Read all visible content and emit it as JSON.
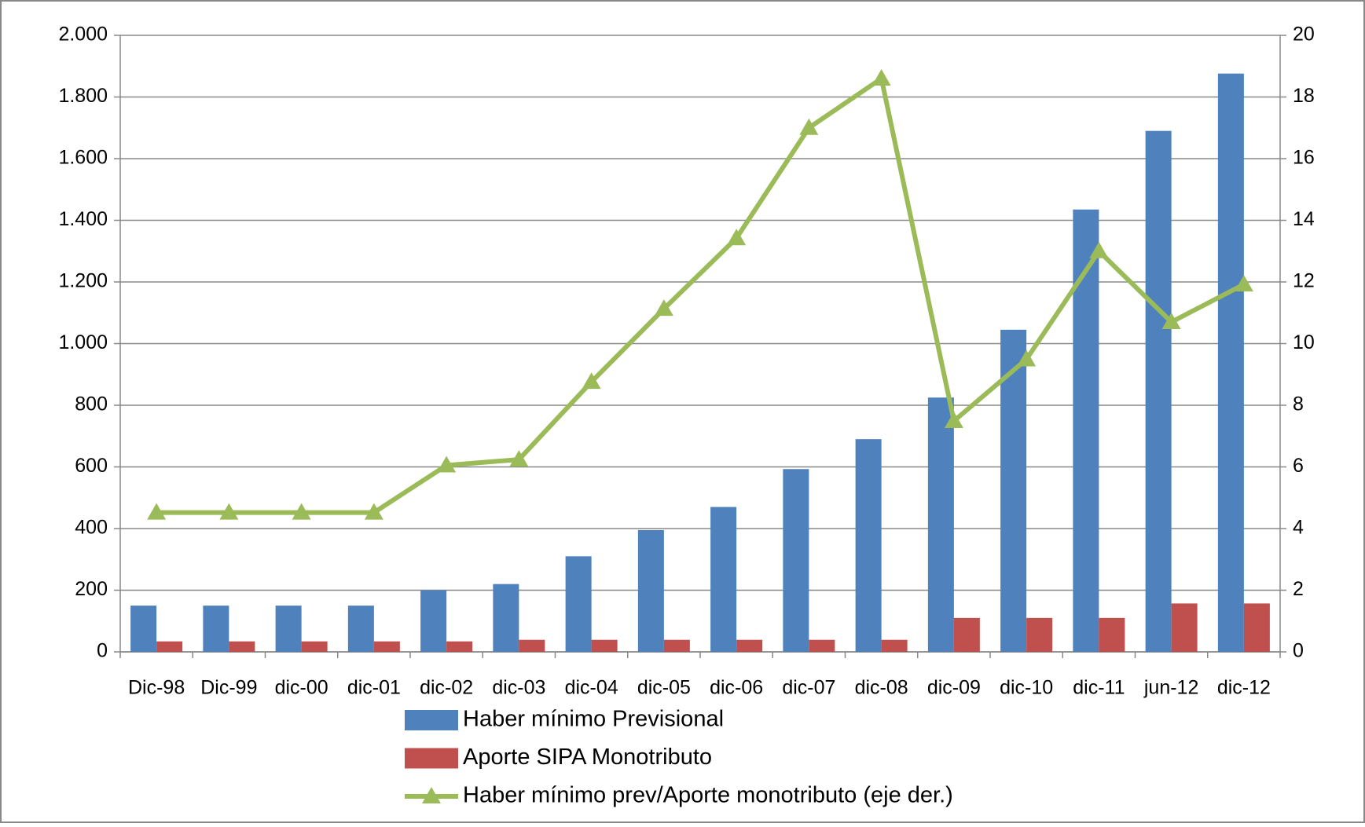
{
  "chart_data": {
    "type": "bar",
    "categories": [
      "Dic-98",
      "Dic-99",
      "dic-00",
      "dic-01",
      "dic-02",
      "dic-03",
      "dic-04",
      "dic-05",
      "dic-06",
      "dic-07",
      "dic-08",
      "dic-09",
      "dic-10",
      "dic-11",
      "jun-12",
      "dic-12"
    ],
    "series": [
      {
        "name": "Haber mínimo Previsional",
        "color": "#4f81bd",
        "type": "bar",
        "values": [
          150,
          150,
          150,
          150,
          200,
          220,
          310,
          395,
          470,
          593,
          690,
          825,
          1045,
          1435,
          1690,
          1876
        ]
      },
      {
        "name": "Aporte SIPA Monotributo",
        "color": "#c0504d",
        "type": "bar",
        "values": [
          34,
          34,
          34,
          34,
          34,
          39,
          39,
          39,
          39,
          39,
          39,
          110,
          110,
          110,
          157,
          157
        ]
      },
      {
        "name": "Haber mínimo prev/Aporte monotributo (eje der.)",
        "color": "#9bbb59",
        "type": "line",
        "axis": "y2",
        "values": [
          4.52,
          4.52,
          4.52,
          4.52,
          6.05,
          6.24,
          8.76,
          11.13,
          13.42,
          17.0,
          18.6,
          7.49,
          9.49,
          13.0,
          10.7,
          11.92
        ]
      }
    ],
    "ylim": [
      0,
      2000
    ],
    "yticks": [
      0,
      200,
      400,
      600,
      800,
      {
        "value": 1000,
        "label": "1.000"
      },
      {
        "value": 1200,
        "label": "1.200"
      },
      {
        "value": 1400,
        "label": "1.400"
      },
      {
        "value": 1600,
        "label": "1.600"
      },
      {
        "value": 1800,
        "label": "1.800"
      },
      {
        "value": 2000,
        "label": "2.000"
      }
    ],
    "y2lim": [
      0,
      20
    ],
    "y2ticks": [
      0,
      2,
      4,
      6,
      8,
      10,
      12,
      14,
      16,
      18,
      20
    ],
    "grid": true
  }
}
